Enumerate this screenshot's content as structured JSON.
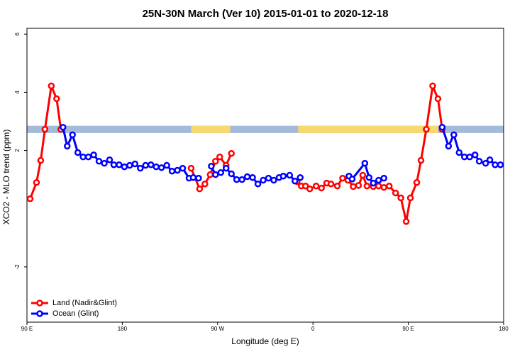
{
  "chart_data": {
    "type": "line",
    "title": "25N-30N March (Ver 10)   2015-01-01 to 2020-12-18",
    "xlabel": "Longitude (deg E)",
    "ylabel": "XCO2 - MLO trend (ppm)",
    "xlim": [
      90,
      540
    ],
    "ylim": [
      -3.9,
      6.2
    ],
    "xticks": [
      {
        "value": 90,
        "label": "90 E"
      },
      180,
      {
        "value": 270,
        "label": "90 W"
      },
      {
        "value": 360,
        "label": "0"
      },
      {
        "value": 450,
        "label": "90 E"
      },
      {
        "value": 540,
        "label": "180"
      }
    ],
    "yticks": [
      -2,
      2,
      4,
      6
    ],
    "legend": "bottomleft",
    "strip": {
      "ylim": [
        2.6,
        2.85
      ],
      "ocean_color": "#a3bbd9",
      "land_color": "#f7d96f",
      "land": [
        [
          245,
          282
        ],
        [
          346,
          478
        ]
      ]
    },
    "series": [
      {
        "name": "Land (Nadir&Glint)",
        "color": "#ff0000",
        "x": [
          93,
          99,
          103,
          107,
          113,
          118,
          122,
          null,
          245,
          253,
          258,
          263,
          268,
          272,
          278,
          283,
          null,
          345,
          349,
          353,
          357,
          363,
          368,
          373,
          377,
          383,
          388,
          393,
          398,
          403,
          407,
          411,
          417,
          422,
          427,
          432,
          438,
          443,
          448,
          452,
          458,
          462,
          467,
          473,
          478,
          482
        ],
        "values": [
          0.34,
          0.9,
          1.66,
          2.73,
          4.22,
          3.78,
          2.73,
          null,
          1.39,
          0.68,
          0.85,
          1.17,
          1.63,
          1.78,
          1.49,
          1.9,
          null,
          0.93,
          0.78,
          0.78,
          0.68,
          0.78,
          0.71,
          0.88,
          0.85,
          0.78,
          1.05,
          0.98,
          0.76,
          0.8,
          1.15,
          0.78,
          0.76,
          0.78,
          0.73,
          0.78,
          0.54,
          0.37,
          -0.44,
          0.37,
          0.9,
          1.66,
          2.73,
          4.22,
          3.78,
          2.73
        ]
      },
      {
        "name": "Ocean (Glint)",
        "color": "#0000ff",
        "x": [
          124,
          128,
          133,
          138,
          143,
          148,
          153,
          158,
          163,
          168,
          172,
          177,
          182,
          187,
          192,
          197,
          202,
          207,
          212,
          217,
          222,
          227,
          232,
          237,
          243,
          247,
          252,
          null,
          264,
          268,
          273,
          278,
          283,
          288,
          293,
          298,
          303,
          308,
          313,
          318,
          323,
          328,
          332,
          338,
          343,
          348,
          null,
          394,
          397,
          409,
          413,
          417,
          422,
          427,
          null,
          482,
          488,
          493,
          498,
          503,
          508,
          513,
          517,
          523,
          527,
          532,
          537
        ],
        "values": [
          2.8,
          2.15,
          2.54,
          1.93,
          1.78,
          1.78,
          1.85,
          1.63,
          1.56,
          1.68,
          1.51,
          1.51,
          1.44,
          1.49,
          1.54,
          1.39,
          1.49,
          1.51,
          1.44,
          1.41,
          1.49,
          1.29,
          1.32,
          1.39,
          1.05,
          1.07,
          1.05,
          null,
          1.46,
          1.17,
          1.24,
          1.39,
          1.2,
          1.0,
          1.0,
          1.1,
          1.07,
          0.85,
          0.98,
          1.05,
          0.98,
          1.07,
          1.12,
          1.15,
          0.95,
          1.07,
          null,
          1.12,
          1.02,
          1.56,
          1.07,
          0.88,
          0.98,
          1.05,
          null,
          2.8,
          2.15,
          2.54,
          1.93,
          1.78,
          1.78,
          1.85,
          1.63,
          1.56,
          1.68,
          1.51,
          1.51
        ]
      }
    ]
  }
}
